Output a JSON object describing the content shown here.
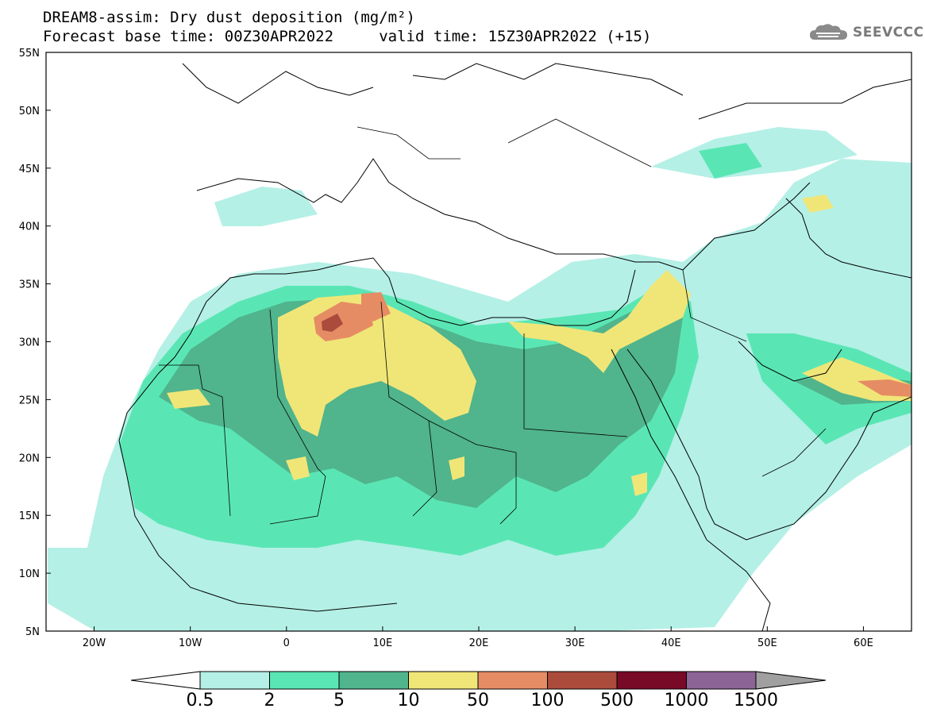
{
  "title": {
    "line1": "DREAM8-assim: Dry dust deposition (mg/m²)",
    "line2": "Forecast base time: 00Z30APR2022     valid time: 15Z30APR2022 (+15)"
  },
  "logo": {
    "text": "SEEVCCC",
    "icon": "cloud-icon"
  },
  "map": {
    "lat_labels": [
      "55N",
      "50N",
      "45N",
      "40N",
      "35N",
      "30N",
      "25N",
      "20N",
      "15N",
      "10N",
      "5N"
    ],
    "lon_labels": [
      "20W",
      "10W",
      "0",
      "10E",
      "20E",
      "30E",
      "40E",
      "50E",
      "60E"
    ],
    "extent": {
      "lon": [
        -25,
        65
      ],
      "lat": [
        5,
        55
      ]
    }
  },
  "colorbar": {
    "labels": [
      "0.5",
      "2",
      "5",
      "10",
      "50",
      "100",
      "500",
      "1000",
      "1500"
    ],
    "colors": [
      "#b4f0e6",
      "#5ae6b4",
      "#50b48c",
      "#f0e678",
      "#e68c64",
      "#aa4b3c",
      "#780a28",
      "#8c6496"
    ],
    "under_color": "#ffffff",
    "over_color": "#a0a0a0"
  }
}
